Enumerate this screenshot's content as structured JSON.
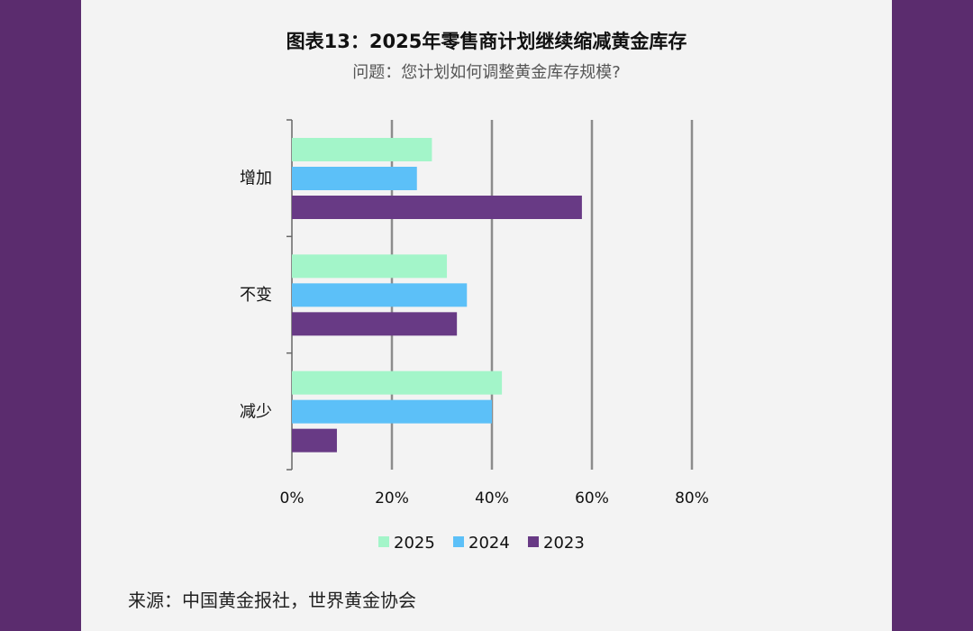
{
  "chart_data": {
    "type": "bar",
    "orientation": "horizontal",
    "title": "图表13：2025年零售商计划继续缩减黄金库存",
    "subtitle": "问题：您计划如何调整黄金库存规模?",
    "categories": [
      "增加",
      "不变",
      "减少"
    ],
    "series": [
      {
        "name": "2025",
        "color": "#a3f5c9",
        "values": [
          28,
          31,
          42
        ]
      },
      {
        "name": "2024",
        "color": "#5cc0f8",
        "values": [
          25,
          35,
          40
        ]
      },
      {
        "name": "2023",
        "color": "#683a85",
        "values": [
          58,
          33,
          9
        ]
      }
    ],
    "xlim": [
      0,
      80
    ],
    "xticks": [
      "0%",
      "20%",
      "40%",
      "60%",
      "80%"
    ],
    "grid": true,
    "legend": "bottom",
    "source": "来源：中国黄金报社，世界黄金协会"
  }
}
